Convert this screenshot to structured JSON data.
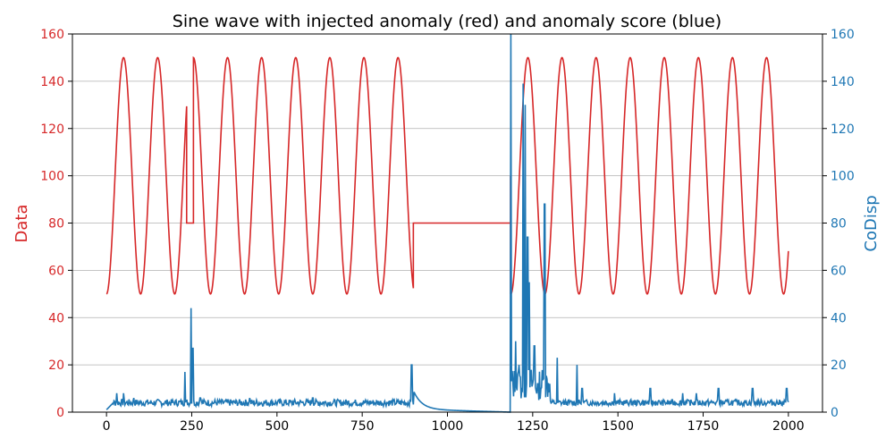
{
  "chart_data": {
    "type": "line",
    "title": "Sine wave with injected anomaly (red) and anomaly score (blue)",
    "xlabel": "",
    "xlim": [
      -100,
      2100
    ],
    "x_ticks": [
      0,
      250,
      500,
      750,
      1000,
      1250,
      1500,
      1750,
      2000
    ],
    "grid": true,
    "y_left": {
      "label": "Data",
      "ylim": [
        0,
        160
      ],
      "ticks": [
        0,
        20,
        40,
        60,
        80,
        100,
        120,
        140,
        160
      ],
      "color": "#d62728"
    },
    "y_right": {
      "label": "CoDisp",
      "ylim": [
        0,
        160
      ],
      "ticks": [
        0,
        20,
        40,
        60,
        80,
        100,
        120,
        140,
        160
      ],
      "color": "#1f77b4"
    },
    "series": [
      {
        "axis": "left",
        "color": "#d62728",
        "segments": [
          {
            "kind": "sine",
            "x_start": 0,
            "x_end": 235,
            "center": 100,
            "amplitude": 50,
            "period": 100,
            "phase_x": 25
          },
          {
            "kind": "points",
            "x": [
              235,
              235,
              255,
              255
            ],
            "y": [
              112,
              80,
              80,
              150
            ]
          },
          {
            "kind": "sine",
            "x_start": 255,
            "x_end": 900,
            "center": 100,
            "amplitude": 50,
            "period": 100,
            "phase_x": 230
          },
          {
            "kind": "points",
            "x": [
              900,
              900,
              1185,
              1185
            ],
            "y": [
              54,
              80,
              80,
              100
            ]
          },
          {
            "kind": "sine",
            "x_start": 1185,
            "x_end": 2000,
            "center": 100,
            "amplitude": 50,
            "period": 100,
            "phase_x": 1211
          }
        ]
      },
      {
        "axis": "right",
        "color": "#1f77b4",
        "noise_segments": [
          {
            "x_start": 0,
            "x_end": 900,
            "base": 4,
            "jitter": 1.8,
            "seed": 7
          },
          {
            "x_start": 1300,
            "x_end": 2000,
            "base": 4,
            "jitter": 1.6,
            "seed": 13
          }
        ],
        "spikes": [
          {
            "x": 30,
            "y": 8
          },
          {
            "x": 50,
            "y": 8
          },
          {
            "x": 80,
            "y": 6
          },
          {
            "x": 230,
            "y": 17
          },
          {
            "x": 248,
            "y": 44
          },
          {
            "x": 253,
            "y": 27
          },
          {
            "x": 275,
            "y": 6
          },
          {
            "x": 420,
            "y": 6
          },
          {
            "x": 605,
            "y": 6
          },
          {
            "x": 895,
            "y": 20
          },
          {
            "x": 1185,
            "y": 160
          },
          {
            "x": 1200,
            "y": 30
          },
          {
            "x": 1210,
            "y": 20
          },
          {
            "x": 1222,
            "y": 139
          },
          {
            "x": 1228,
            "y": 130
          },
          {
            "x": 1235,
            "y": 74
          },
          {
            "x": 1240,
            "y": 55
          },
          {
            "x": 1255,
            "y": 28
          },
          {
            "x": 1265,
            "y": 12
          },
          {
            "x": 1285,
            "y": 88
          },
          {
            "x": 1300,
            "y": 12
          },
          {
            "x": 1322,
            "y": 23
          },
          {
            "x": 1380,
            "y": 20
          },
          {
            "x": 1395,
            "y": 10
          },
          {
            "x": 1490,
            "y": 8
          },
          {
            "x": 1595,
            "y": 10
          },
          {
            "x": 1690,
            "y": 8
          },
          {
            "x": 1730,
            "y": 8
          },
          {
            "x": 1795,
            "y": 10
          },
          {
            "x": 1895,
            "y": 10
          },
          {
            "x": 1995,
            "y": 10
          }
        ],
        "decay": {
          "x_start": 900,
          "x_end": 1185,
          "y_start": 8,
          "y_end": 0
        }
      }
    ]
  }
}
